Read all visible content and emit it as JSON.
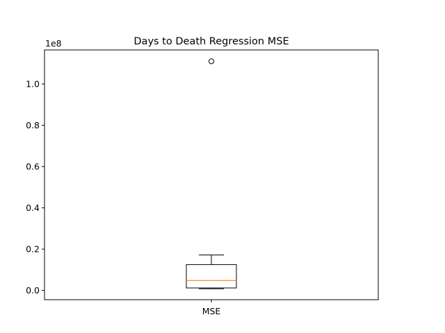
{
  "chart_data": {
    "type": "boxplot",
    "title": "Days to Death Regression MSE",
    "xlabel": "",
    "ylabel": "",
    "offset_text": "1e8",
    "ylim": [
      -0.045,
      1.165
    ],
    "yticks": [
      0.0,
      0.2,
      0.4,
      0.6,
      0.8,
      1.0
    ],
    "ytick_labels": [
      "0.0",
      "0.2",
      "0.4",
      "0.6",
      "0.8",
      "1.0"
    ],
    "categories": [
      "MSE"
    ],
    "boxes": [
      {
        "label": "MSE",
        "whisker_low": 0.008,
        "q1": 0.012,
        "median": 0.048,
        "q3": 0.125,
        "whisker_high": 0.172,
        "outliers": [
          1.11
        ]
      }
    ],
    "grid": false,
    "colors": {
      "median": "#ff7f0e",
      "box": "#000000"
    }
  }
}
